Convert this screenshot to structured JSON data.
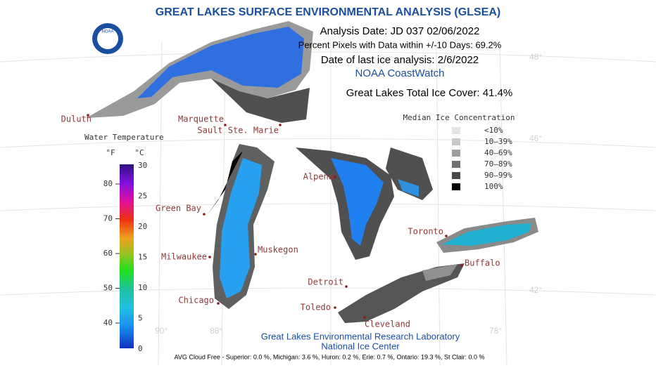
{
  "header": {
    "title": "GREAT LAKES SURFACE ENVIRONMENTAL ANALYSIS (GLSEA)",
    "analysis_date": "Analysis Date:  JD 037 02/06/2022",
    "percent_pixels": "Percent Pixels with Data within +/-10 Days:  69.2%",
    "last_ice": "Date of last ice analysis: 2/6/2022",
    "source": "NOAA CoastWatch",
    "total_ice": "Great Lakes Total Ice Cover:  41.4%"
  },
  "logo": "NOAA",
  "ice_legend": {
    "title": "Median Ice Concentration",
    "items": [
      {
        "label": "<10%",
        "color": "#e4e4e4"
      },
      {
        "label": "10–39%",
        "color": "#c8c8c8"
      },
      {
        "label": "40–69%",
        "color": "#a0a0a0"
      },
      {
        "label": "70–89%",
        "color": "#707070"
      },
      {
        "label": "90–99%",
        "color": "#484848"
      },
      {
        "label": "100%",
        "color": "#000000"
      }
    ]
  },
  "temp_legend": {
    "title": "Water Temperature",
    "f_unit": "°F",
    "c_unit": "°C",
    "f_ticks": [
      "80",
      "70",
      "60",
      "50",
      "40"
    ],
    "c_ticks": [
      "30",
      "25",
      "20",
      "15",
      "10",
      "5",
      "0"
    ]
  },
  "cities": [
    "Duluth",
    "Marquette",
    "Sault Ste. Marie",
    "Alpena",
    "Green Bay",
    "Toronto",
    "Milwaukee",
    "Muskegon",
    "Buffalo",
    "Detroit",
    "Chicago",
    "Toledo",
    "Cleveland"
  ],
  "grid_labels": [
    "48°",
    "46°",
    "42°",
    "90°",
    "88°",
    "78°"
  ],
  "footer": {
    "lab": "Great Lakes Environmental Research Laboratory",
    "center": "National Ice Center",
    "cloud_free": "AVG Cloud Free - Superior:  0.0 %, Michigan:  3.6 %, Huron:  0.2 %, Erie:  0.7 %, Ontario: 19.3 %, St Clair:  0.0 %"
  }
}
